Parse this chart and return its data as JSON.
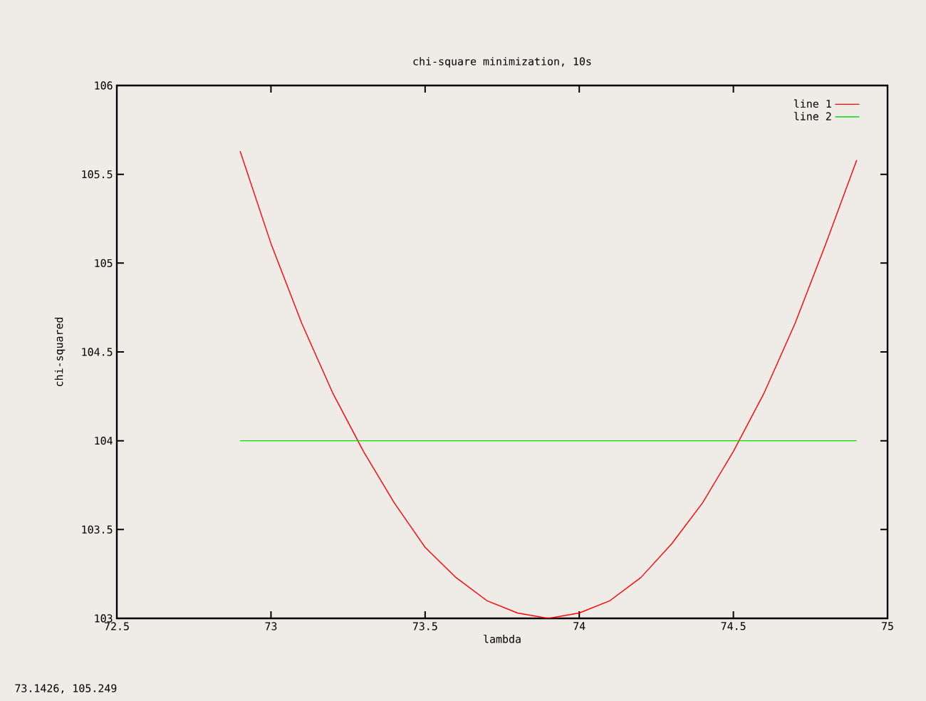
{
  "chart_data": {
    "type": "line",
    "title": "chi-square minimization, 10s",
    "xlabel": "lambda",
    "ylabel": "chi-squared",
    "annotations": [
      "73.1426,  105.249"
    ],
    "xlim": [
      72.5,
      75
    ],
    "ylim": [
      103,
      106
    ],
    "xticks": [
      72.5,
      73,
      73.5,
      74,
      74.5,
      75
    ],
    "yticks": [
      103,
      103.5,
      104,
      104.5,
      105,
      105.5,
      106
    ],
    "legend": "top right",
    "series": [
      {
        "name": "line 1",
        "color": "#ff0000",
        "x": [
          72.9,
          73.0,
          73.1,
          73.2,
          73.3,
          73.4,
          73.5,
          73.6,
          73.7,
          73.8,
          73.9,
          74.0,
          74.1,
          74.2,
          74.3,
          74.4,
          74.5,
          74.6,
          74.7,
          74.8,
          74.9
        ],
        "values": [
          105.63,
          105.11,
          104.66,
          104.27,
          103.94,
          103.65,
          103.4,
          103.23,
          103.1,
          103.03,
          103.0,
          103.03,
          103.1,
          103.23,
          103.42,
          103.65,
          103.94,
          104.27,
          104.66,
          105.11,
          105.58
        ]
      },
      {
        "name": "line 2",
        "color": "#00dd00",
        "x": [
          72.9,
          74.9
        ],
        "values": [
          104,
          104
        ]
      }
    ]
  }
}
